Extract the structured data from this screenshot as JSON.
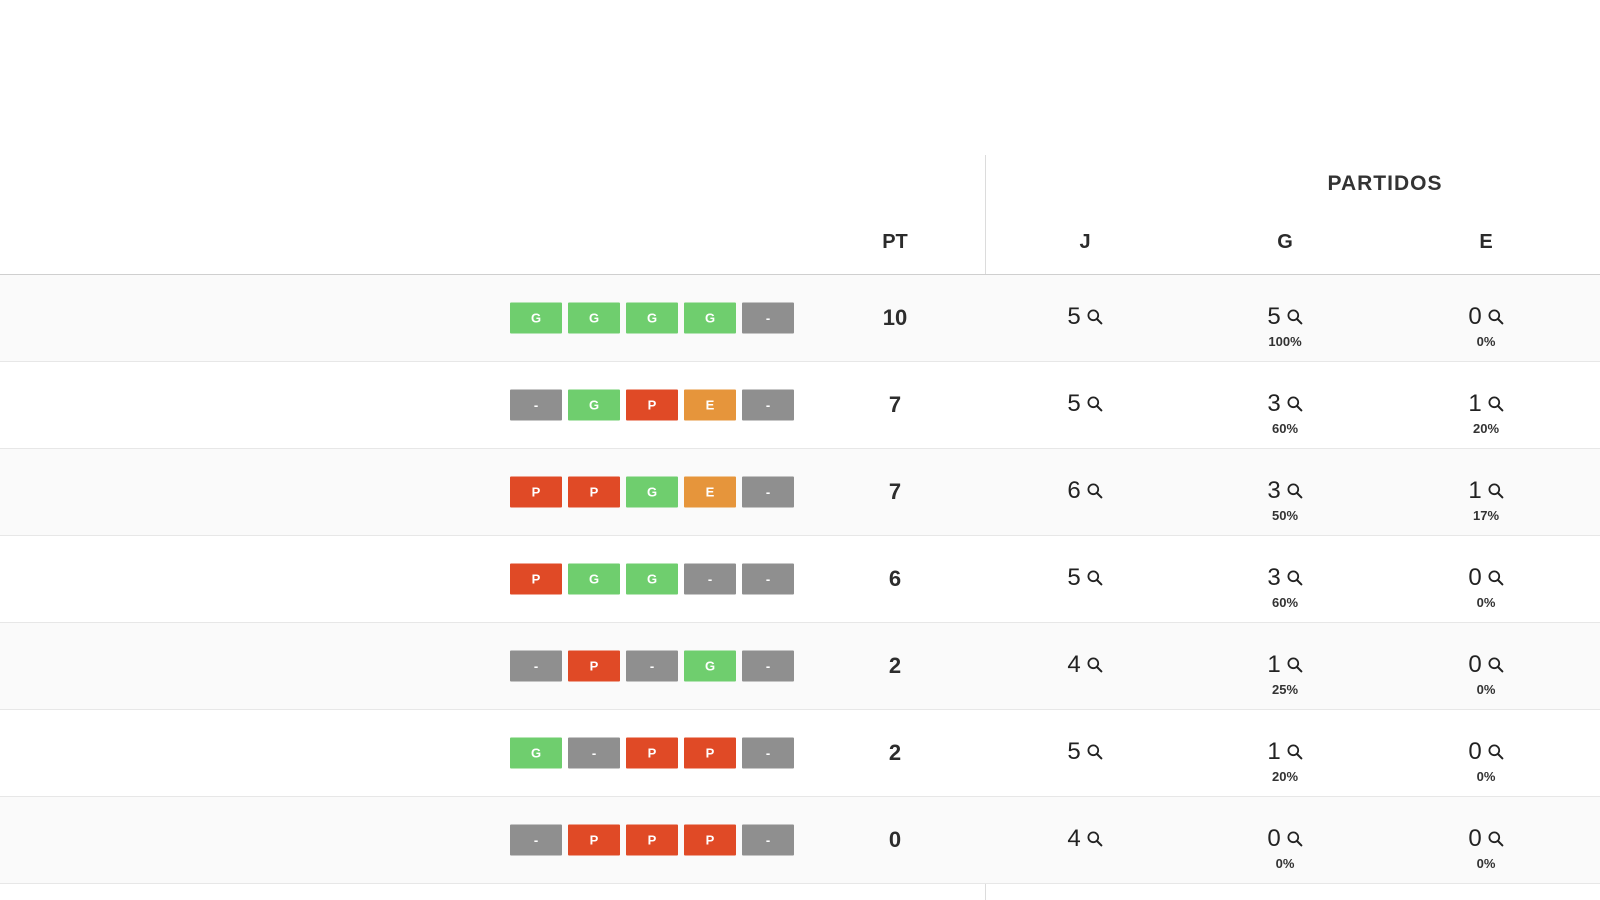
{
  "header": {
    "group": "PARTIDOS",
    "pt": "PT",
    "j": "J",
    "g": "G",
    "e": "E"
  },
  "form_colors": {
    "G": "#6fce6e",
    "P": "#e04a26",
    "E": "#e6953b",
    "-": "#8f8f8f"
  },
  "table": {
    "rows": [
      {
        "form": [
          "G",
          "G",
          "G",
          "G",
          "-"
        ],
        "pt": "10",
        "j": "5",
        "g": "5",
        "g_pct": "100%",
        "e": "0",
        "e_pct": "0%"
      },
      {
        "form": [
          "-",
          "G",
          "P",
          "E",
          "-"
        ],
        "pt": "7",
        "j": "5",
        "g": "3",
        "g_pct": "60%",
        "e": "1",
        "e_pct": "20%"
      },
      {
        "form": [
          "P",
          "P",
          "G",
          "E",
          "-"
        ],
        "pt": "7",
        "j": "6",
        "g": "3",
        "g_pct": "50%",
        "e": "1",
        "e_pct": "17%"
      },
      {
        "form": [
          "P",
          "G",
          "G",
          "-",
          "-"
        ],
        "pt": "6",
        "j": "5",
        "g": "3",
        "g_pct": "60%",
        "e": "0",
        "e_pct": "0%"
      },
      {
        "form": [
          "-",
          "P",
          "-",
          "G",
          "-"
        ],
        "pt": "2",
        "j": "4",
        "g": "1",
        "g_pct": "25%",
        "e": "0",
        "e_pct": "0%"
      },
      {
        "form": [
          "G",
          "-",
          "P",
          "P",
          "-"
        ],
        "pt": "2",
        "j": "5",
        "g": "1",
        "g_pct": "20%",
        "e": "0",
        "e_pct": "0%"
      },
      {
        "form": [
          "-",
          "P",
          "P",
          "P",
          "-"
        ],
        "pt": "0",
        "j": "4",
        "g": "0",
        "g_pct": "0%",
        "e": "0",
        "e_pct": "0%"
      }
    ]
  }
}
